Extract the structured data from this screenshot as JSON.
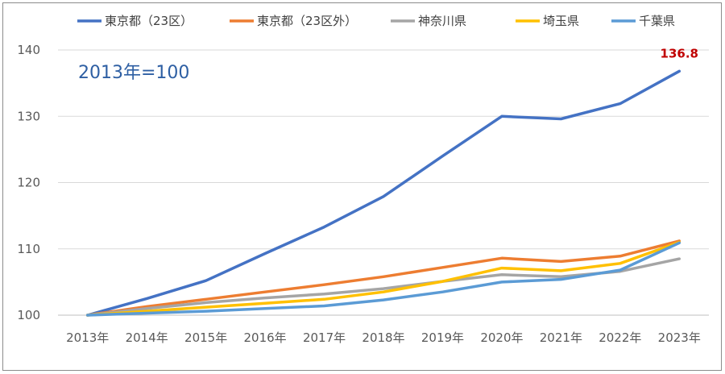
{
  "chart_data": {
    "type": "line",
    "title": "",
    "annotation": "2013年=100",
    "x": [
      "2013年",
      "2014年",
      "2015年",
      "2016年",
      "2017年",
      "2018年",
      "2019年",
      "2020年",
      "2021年",
      "2022年",
      "2023年"
    ],
    "ylim": [
      100,
      140
    ],
    "yticks": [
      100,
      110,
      120,
      130,
      140
    ],
    "grid": true,
    "legend_position": "top",
    "series": [
      {
        "name": "東京都（23区）",
        "color": "#4472c4",
        "values": [
          100,
          102.5,
          105.2,
          109.3,
          113.3,
          117.9,
          124.0,
          130.0,
          129.6,
          131.9,
          136.8
        ]
      },
      {
        "name": "東京都（23区外）",
        "color": "#ed7d31",
        "values": [
          100,
          101.3,
          102.4,
          103.5,
          104.6,
          105.8,
          107.2,
          108.6,
          108.1,
          108.9,
          111.2
        ]
      },
      {
        "name": "神奈川県",
        "color": "#a5a5a5",
        "values": [
          100,
          101.0,
          101.9,
          102.6,
          103.2,
          104.0,
          105.1,
          106.1,
          105.8,
          106.6,
          108.5
        ]
      },
      {
        "name": "埼玉県",
        "color": "#ffc000",
        "values": [
          100,
          100.6,
          101.2,
          101.8,
          102.4,
          103.5,
          105.1,
          107.1,
          106.7,
          107.8,
          111.0
        ]
      },
      {
        "name": "千葉県",
        "color": "#5b9bd5",
        "values": [
          100,
          100.3,
          100.6,
          101.0,
          101.4,
          102.3,
          103.5,
          105.0,
          105.4,
          106.8,
          110.9
        ]
      }
    ],
    "data_labels": [
      {
        "series": 0,
        "index": 10,
        "text": "136.8"
      }
    ]
  }
}
